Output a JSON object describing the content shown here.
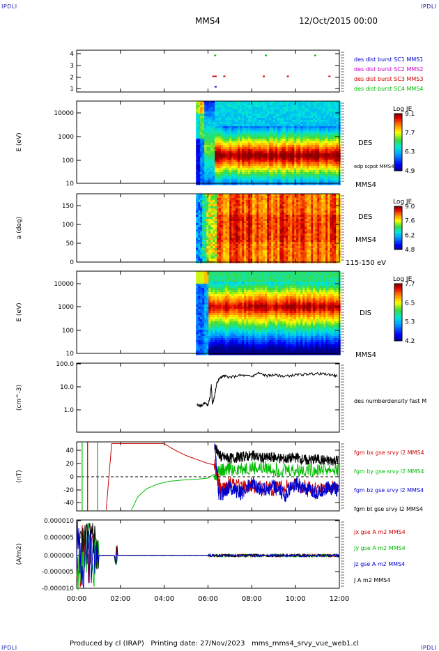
{
  "header": {
    "left_tag": "IPDLI",
    "right_tag": "IPDLI",
    "title": "MMS4",
    "datetime": "12/Oct/2015 00:00"
  },
  "footer": {
    "produced": "Produced by cl (IRAP)",
    "printing": "Printing date: 27/Nov/2023",
    "file": "mms_mms4_srvy_vue_web1.cl",
    "bottom_left_tag": "IPDLI",
    "bottom_right_tag": "IPDLI"
  },
  "chart_data": [
    {
      "id": "burst",
      "type": "scatter",
      "ylabel": "",
      "yticks": [
        "1",
        "2",
        "3",
        "4"
      ],
      "ylim": [
        0.5,
        4.5
      ],
      "legend": [
        {
          "label": "des dist burst SC1 MMS1",
          "color": "#0000cc"
        },
        {
          "label": "des dist burst SC2 MMS2",
          "color": "#cc00cc"
        },
        {
          "label": "des dist burst SC3 MMS3",
          "color": "#cc0000"
        },
        {
          "label": "des dist burst SC4 MMS4",
          "color": "#00bb00"
        }
      ],
      "series": [
        {
          "name": "des dist burst SC4 MMS4",
          "y": 4,
          "color": "#00bb00",
          "x_hours": [
            6.28,
            8.6,
            10.85
          ]
        },
        {
          "name": "des dist burst SC3 MMS3",
          "y": 2,
          "color": "#cc0000",
          "x_hours": [
            6.2,
            6.3,
            6.7,
            8.5,
            9.6,
            11.5
          ]
        },
        {
          "name": "des dist burst SC1 MMS1",
          "y": 1,
          "color": "#0000cc",
          "x_hours": [
            6.3
          ]
        }
      ]
    },
    {
      "id": "des_energy",
      "type": "heatmap",
      "ylabel": "E (eV)",
      "yticks": [
        "10",
        "100",
        "1000",
        "10000"
      ],
      "ylog": true,
      "ylim": [
        10,
        30000
      ],
      "side_labels": [
        "DES",
        "edp scpot MMS4",
        "MMS4"
      ],
      "colorbar": {
        "title": "Log JE",
        "ticks": [
          "9.1",
          "7.7",
          "6.3",
          "4.9"
        ],
        "range": [
          4.9,
          9.1
        ]
      },
      "data_start_hour": 5.45,
      "description_rows": [
        {
          "band": "low",
          "values": [
            6.3,
            5.5,
            8.8,
            8.9,
            8.9,
            8.9,
            9.0,
            8.9
          ]
        },
        {
          "band": "mid",
          "values": [
            5.2,
            5.0,
            7.8,
            7.9,
            8.0,
            7.9,
            8.0,
            7.9
          ]
        },
        {
          "band": "high",
          "values": [
            6.0,
            5.2,
            6.1,
            6.1,
            6.2,
            6.2,
            6.1,
            6.1
          ]
        }
      ]
    },
    {
      "id": "des_pitch",
      "type": "heatmap",
      "ylabel": "a (deg)",
      "yticks": [
        "0",
        "50",
        "100",
        "150"
      ],
      "ylim": [
        0,
        180
      ],
      "side_labels": [
        "DES",
        "MMS4",
        "115-150 eV"
      ],
      "colorbar": {
        "title": "Log JE",
        "ticks": [
          "9.0",
          "7.6",
          "6.2",
          "4.8"
        ],
        "range": [
          4.8,
          9.0
        ]
      },
      "data_start_hour": 5.45
    },
    {
      "id": "dis_energy",
      "type": "heatmap",
      "ylabel": "E (eV)",
      "yticks": [
        "10",
        "100",
        "1000",
        "10000"
      ],
      "ylog": true,
      "ylim": [
        10,
        30000
      ],
      "side_labels": [
        "DIS",
        "MMS4"
      ],
      "colorbar": {
        "title": "Log JE",
        "ticks": [
          "7.7",
          "6.5",
          "5.3",
          "4.2"
        ],
        "range": [
          4.2,
          7.7
        ]
      },
      "data_start_hour": 5.45
    },
    {
      "id": "density",
      "type": "line",
      "ylabel": "(cm^-3)",
      "yticks": [
        "1.0",
        "10.0",
        "100.0"
      ],
      "ylog": true,
      "ylim": [
        0.1,
        100
      ],
      "series": [
        {
          "name": "des numberdensity fast M",
          "color": "#000000",
          "x_hours": [
            5.5,
            5.7,
            5.85,
            6.0,
            6.1,
            6.15,
            6.2,
            6.3,
            6.4,
            6.5,
            6.7,
            7.0,
            7.5,
            8.0,
            8.3,
            8.7,
            9.0,
            9.5,
            10.0,
            10.5,
            11.0,
            11.5,
            11.9
          ],
          "values": [
            1.6,
            1.5,
            1.9,
            1.6,
            4.0,
            12.0,
            1.8,
            4.0,
            14.0,
            22.0,
            30.0,
            26.0,
            32.0,
            28.0,
            40.0,
            30.0,
            33.0,
            29.0,
            33.0,
            36.0,
            38.0,
            35.0,
            30.0
          ]
        }
      ]
    },
    {
      "id": "bfield",
      "type": "line",
      "ylabel": "(nT)",
      "yticks": [
        "-40",
        "-20",
        "0",
        "20",
        "40"
      ],
      "ylim": [
        -50,
        50
      ],
      "legend": [
        {
          "label": "fgm bx gse srvy l2 MMS4",
          "color": "#cc0000"
        },
        {
          "label": "fgm by gse srvy l2 MMS4",
          "color": "#00bb00"
        },
        {
          "label": "fgm bz gse srvy l2 MMS4",
          "color": "#0000cc"
        },
        {
          "label": "fgm bt gse srvy l2 MMS4",
          "color": "#000000"
        }
      ],
      "series": [
        {
          "name": "fgm bx gse srvy l2 MMS4",
          "color": "#cc0000",
          "x_hours": [
            1.35,
            1.6,
            4.0,
            4.5,
            5.0,
            5.5,
            6.0,
            6.3,
            6.6,
            7.0,
            8.0,
            9.0,
            10.0,
            11.0,
            11.95
          ],
          "values": [
            -50,
            50,
            50,
            40,
            32,
            26,
            20,
            18,
            -20,
            -10,
            -14,
            -18,
            -12,
            -20,
            -16
          ]
        },
        {
          "name": "fgm by gse srvy l2 MMS4",
          "color": "#00bb00",
          "x_hours": [
            2.5,
            2.8,
            3.2,
            3.7,
            4.2,
            4.8,
            5.4,
            6.0,
            6.3,
            6.6,
            7.0,
            8.0,
            9.0,
            10.0,
            11.0,
            11.95
          ],
          "values": [
            -50,
            -30,
            -18,
            -11,
            -7,
            -5,
            -4,
            -2,
            4,
            8,
            12,
            14,
            12,
            10,
            12,
            10
          ]
        },
        {
          "name": "fgm bz gse srvy l2 MMS4",
          "color": "#0000cc",
          "x_hours": [
            6.3,
            6.5,
            7.0,
            7.5,
            8.0,
            8.5,
            9.0,
            9.5,
            10.0,
            10.5,
            11.0,
            11.5,
            11.95
          ],
          "values": [
            50,
            -30,
            -15,
            -25,
            -10,
            -20,
            -15,
            -28,
            -10,
            -20,
            -25,
            -15,
            -20
          ]
        },
        {
          "name": "fgm bt gse srvy l2 MMS4",
          "color": "#000000",
          "x_hours": [
            6.3,
            6.6,
            7.0,
            7.5,
            8.0,
            8.5,
            9.0,
            9.5,
            10.0,
            10.5,
            11.0,
            11.5,
            11.95
          ],
          "values": [
            45,
            30,
            28,
            30,
            32,
            28,
            30,
            27,
            29,
            25,
            27,
            24,
            26
          ]
        }
      ],
      "initial_spikes": [
        {
          "x_hour": 0.25,
          "color": "#00bb00"
        },
        {
          "x_hour": 0.5,
          "color": "#cc0000"
        },
        {
          "x_hour": 0.95,
          "color": "#00bb00"
        }
      ]
    },
    {
      "id": "current",
      "type": "line",
      "ylabel": "(A/m2)",
      "yticks": [
        "-0.000010",
        "-0.000005",
        "0.000000",
        "0.000005",
        "0.000010"
      ],
      "ylim": [
        -1e-05,
        1e-05
      ],
      "legend": [
        {
          "label": "Jx gse A m2 MMS4",
          "color": "#cc0000"
        },
        {
          "label": "Jy gse A m2 MMS4",
          "color": "#00bb00"
        },
        {
          "label": "Jz gse A m2 MMS4",
          "color": "#0000cc"
        },
        {
          "label": "J A m2 MMS4",
          "color": "#000000"
        }
      ]
    }
  ],
  "xaxis": {
    "ticks": [
      "00:00",
      "02:00",
      "04:00",
      "06:00",
      "08:00",
      "10:00",
      "12:00"
    ],
    "range_hours": [
      0,
      12
    ]
  }
}
